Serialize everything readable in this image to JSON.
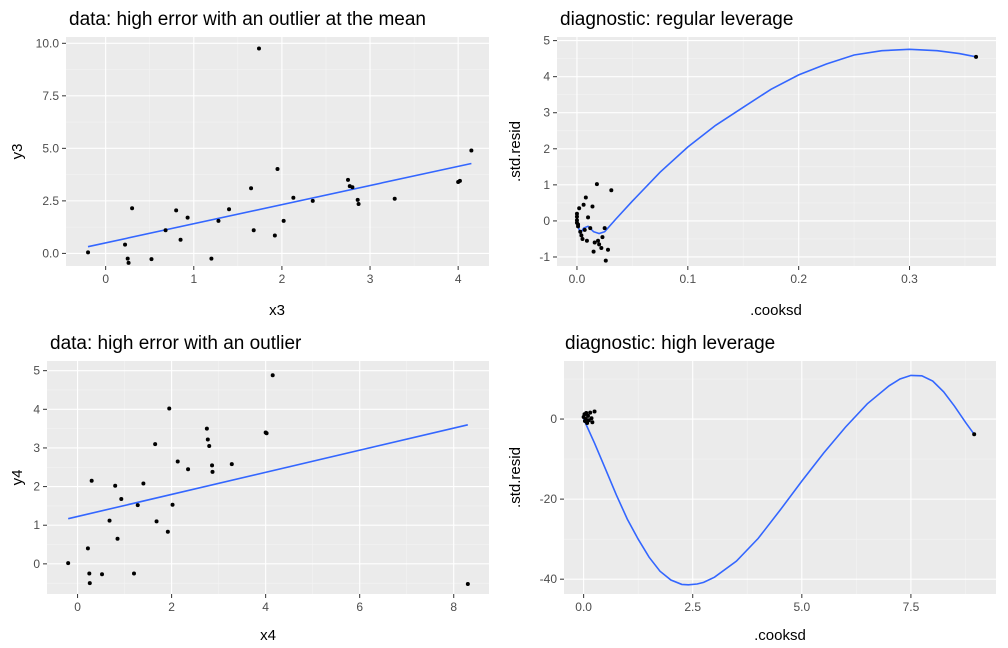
{
  "colors": {
    "point": "#000000",
    "line": "#3366ff",
    "panel": "#ebebeb"
  },
  "chart_data": [
    {
      "type": "scatter",
      "title": "data: high error with an outlier at the mean",
      "xlabel": "x3",
      "ylabel": "y3",
      "xlim": [
        -0.45,
        4.35
      ],
      "ylim": [
        -0.6,
        10.3
      ],
      "xticks": [
        0,
        1,
        2,
        3,
        4
      ],
      "xtick_labels": [
        "0",
        "1",
        "2",
        "3",
        "4"
      ],
      "yticks": [
        0,
        2.5,
        5,
        7.5,
        10
      ],
      "ytick_labels": [
        "0.0",
        "2.5",
        "5.0",
        "7.5",
        "10.0"
      ],
      "points": [
        [
          -0.2,
          0.05
        ],
        [
          0.22,
          0.42
        ],
        [
          0.25,
          -0.25
        ],
        [
          0.26,
          -0.45
        ],
        [
          0.3,
          2.15
        ],
        [
          0.52,
          -0.27
        ],
        [
          0.68,
          1.1
        ],
        [
          0.8,
          2.05
        ],
        [
          0.85,
          0.65
        ],
        [
          0.93,
          1.7
        ],
        [
          1.2,
          -0.25
        ],
        [
          1.28,
          1.55
        ],
        [
          1.4,
          2.1
        ],
        [
          1.65,
          3.1
        ],
        [
          1.68,
          1.1
        ],
        [
          1.74,
          9.75
        ],
        [
          1.92,
          0.85
        ],
        [
          1.95,
          4.02
        ],
        [
          2.02,
          1.55
        ],
        [
          2.13,
          2.65
        ],
        [
          2.35,
          2.5
        ],
        [
          2.75,
          3.5
        ],
        [
          2.77,
          3.2
        ],
        [
          2.8,
          3.15
        ],
        [
          2.86,
          2.55
        ],
        [
          2.87,
          2.35
        ],
        [
          3.28,
          2.6
        ],
        [
          4.0,
          3.4
        ],
        [
          4.02,
          3.45
        ],
        [
          4.15,
          4.9
        ]
      ],
      "smooth": [
        [
          -0.2,
          0.32
        ],
        [
          4.15,
          4.28
        ]
      ]
    },
    {
      "type": "scatter",
      "title": "diagnostic: regular leverage",
      "xlabel": ".cooksd",
      "ylabel": ".std.resid",
      "xlim": [
        -0.018,
        0.378
      ],
      "ylim": [
        -1.25,
        5.1
      ],
      "xticks": [
        0,
        0.1,
        0.2,
        0.3
      ],
      "xtick_labels": [
        "0.0",
        "0.1",
        "0.2",
        "0.3"
      ],
      "yticks": [
        -1,
        0,
        1,
        2,
        3,
        4,
        5
      ],
      "ytick_labels": [
        "-1",
        "0",
        "1",
        "2",
        "3",
        "4",
        "5"
      ],
      "points": [
        [
          0.0,
          0.02
        ],
        [
          0.0,
          0.2
        ],
        [
          0.0,
          0.12
        ],
        [
          0.0,
          -0.05
        ],
        [
          0.001,
          -0.15
        ],
        [
          0.001,
          -0.1
        ],
        [
          0.002,
          0.35
        ],
        [
          0.003,
          -0.3
        ],
        [
          0.004,
          -0.4
        ],
        [
          0.005,
          -0.5
        ],
        [
          0.006,
          0.45
        ],
        [
          0.007,
          -0.25
        ],
        [
          0.008,
          0.65
        ],
        [
          0.009,
          -0.55
        ],
        [
          0.01,
          0.1
        ],
        [
          0.012,
          -0.2
        ],
        [
          0.014,
          0.4
        ],
        [
          0.015,
          -0.85
        ],
        [
          0.016,
          -0.6
        ],
        [
          0.018,
          1.02
        ],
        [
          0.019,
          -0.55
        ],
        [
          0.02,
          -0.65
        ],
        [
          0.022,
          -0.75
        ],
        [
          0.023,
          -0.45
        ],
        [
          0.025,
          -0.2
        ],
        [
          0.026,
          -1.1
        ],
        [
          0.028,
          -0.8
        ],
        [
          0.031,
          0.85
        ],
        [
          0.36,
          4.55
        ]
      ],
      "smooth": [
        [
          0.0,
          -0.05
        ],
        [
          0.003,
          -0.35
        ],
        [
          0.006,
          -0.2
        ],
        [
          0.01,
          -0.15
        ],
        [
          0.015,
          -0.3
        ],
        [
          0.02,
          -0.35
        ],
        [
          0.025,
          -0.3
        ],
        [
          0.035,
          0.05
        ],
        [
          0.05,
          0.55
        ],
        [
          0.075,
          1.35
        ],
        [
          0.1,
          2.05
        ],
        [
          0.125,
          2.65
        ],
        [
          0.15,
          3.15
        ],
        [
          0.175,
          3.65
        ],
        [
          0.2,
          4.05
        ],
        [
          0.225,
          4.35
        ],
        [
          0.25,
          4.6
        ],
        [
          0.275,
          4.72
        ],
        [
          0.3,
          4.76
        ],
        [
          0.325,
          4.72
        ],
        [
          0.345,
          4.64
        ],
        [
          0.36,
          4.55
        ]
      ]
    },
    {
      "type": "scatter",
      "title": "data: high error with an outlier",
      "xlabel": "x4",
      "ylabel": "y4",
      "xlim": [
        -0.65,
        8.75
      ],
      "ylim": [
        -0.78,
        5.25
      ],
      "xticks": [
        0,
        2,
        4,
        6,
        8
      ],
      "xtick_labels": [
        "0",
        "2",
        "4",
        "6",
        "8"
      ],
      "yticks": [
        0,
        1,
        2,
        3,
        4,
        5
      ],
      "ytick_labels": [
        "0",
        "1",
        "2",
        "3",
        "4",
        "5"
      ],
      "points": [
        [
          -0.2,
          0.02
        ],
        [
          0.22,
          0.4
        ],
        [
          0.25,
          -0.25
        ],
        [
          0.26,
          -0.5
        ],
        [
          0.3,
          2.15
        ],
        [
          0.52,
          -0.27
        ],
        [
          0.68,
          1.12
        ],
        [
          0.8,
          2.02
        ],
        [
          0.85,
          0.65
        ],
        [
          0.93,
          1.68
        ],
        [
          1.2,
          -0.25
        ],
        [
          1.28,
          1.52
        ],
        [
          1.4,
          2.08
        ],
        [
          1.65,
          3.1
        ],
        [
          1.68,
          1.1
        ],
        [
          1.92,
          0.83
        ],
        [
          1.95,
          4.02
        ],
        [
          2.02,
          1.53
        ],
        [
          2.13,
          2.65
        ],
        [
          2.35,
          2.45
        ],
        [
          2.75,
          3.5
        ],
        [
          2.77,
          3.22
        ],
        [
          2.8,
          3.05
        ],
        [
          2.86,
          2.55
        ],
        [
          2.87,
          2.38
        ],
        [
          3.28,
          2.58
        ],
        [
          4.0,
          3.4
        ],
        [
          4.02,
          3.38
        ],
        [
          4.15,
          4.88
        ],
        [
          8.3,
          -0.52
        ]
      ],
      "smooth": [
        [
          -0.2,
          1.17
        ],
        [
          8.3,
          3.6
        ]
      ]
    },
    {
      "type": "scatter",
      "title": "diagnostic: high leverage",
      "xlabel": ".cooksd",
      "ylabel": ".std.resid",
      "xlim": [
        -0.45,
        9.45
      ],
      "ylim": [
        -43.7,
        14.5
      ],
      "xticks": [
        0,
        2.5,
        5,
        7.5
      ],
      "xtick_labels": [
        "0.0",
        "2.5",
        "5.0",
        "7.5"
      ],
      "yticks": [
        -40,
        -20,
        0
      ],
      "ytick_labels": [
        "-40",
        "-20",
        "0"
      ],
      "points": [
        [
          0.0,
          0.5
        ],
        [
          0.02,
          1.2
        ],
        [
          0.03,
          -0.5
        ],
        [
          0.05,
          0.0
        ],
        [
          0.06,
          1.5
        ],
        [
          0.08,
          -1.0
        ],
        [
          0.1,
          0.8
        ],
        [
          0.12,
          -0.3
        ],
        [
          0.15,
          1.6
        ],
        [
          0.18,
          0.2
        ],
        [
          0.2,
          -0.8
        ],
        [
          0.25,
          1.9
        ],
        [
          8.95,
          -3.8
        ]
      ],
      "smooth": [
        [
          0.0,
          0.0
        ],
        [
          0.25,
          -6.0
        ],
        [
          0.5,
          -12.5
        ],
        [
          0.75,
          -19.0
        ],
        [
          1.0,
          -25.0
        ],
        [
          1.25,
          -30.0
        ],
        [
          1.5,
          -34.5
        ],
        [
          1.75,
          -38.0
        ],
        [
          2.0,
          -40.2
        ],
        [
          2.25,
          -41.3
        ],
        [
          2.4,
          -41.4
        ],
        [
          2.6,
          -41.2
        ],
        [
          2.75,
          -40.8
        ],
        [
          3.0,
          -39.5
        ],
        [
          3.5,
          -35.5
        ],
        [
          4.0,
          -29.8
        ],
        [
          4.5,
          -22.8
        ],
        [
          5.0,
          -15.5
        ],
        [
          5.5,
          -8.5
        ],
        [
          6.0,
          -2.0
        ],
        [
          6.5,
          3.8
        ],
        [
          7.0,
          8.3
        ],
        [
          7.25,
          10.0
        ],
        [
          7.5,
          10.9
        ],
        [
          7.75,
          10.8
        ],
        [
          8.0,
          9.5
        ],
        [
          8.25,
          6.8
        ],
        [
          8.5,
          3.2
        ],
        [
          8.75,
          -0.8
        ],
        [
          8.95,
          -3.8
        ]
      ]
    }
  ]
}
